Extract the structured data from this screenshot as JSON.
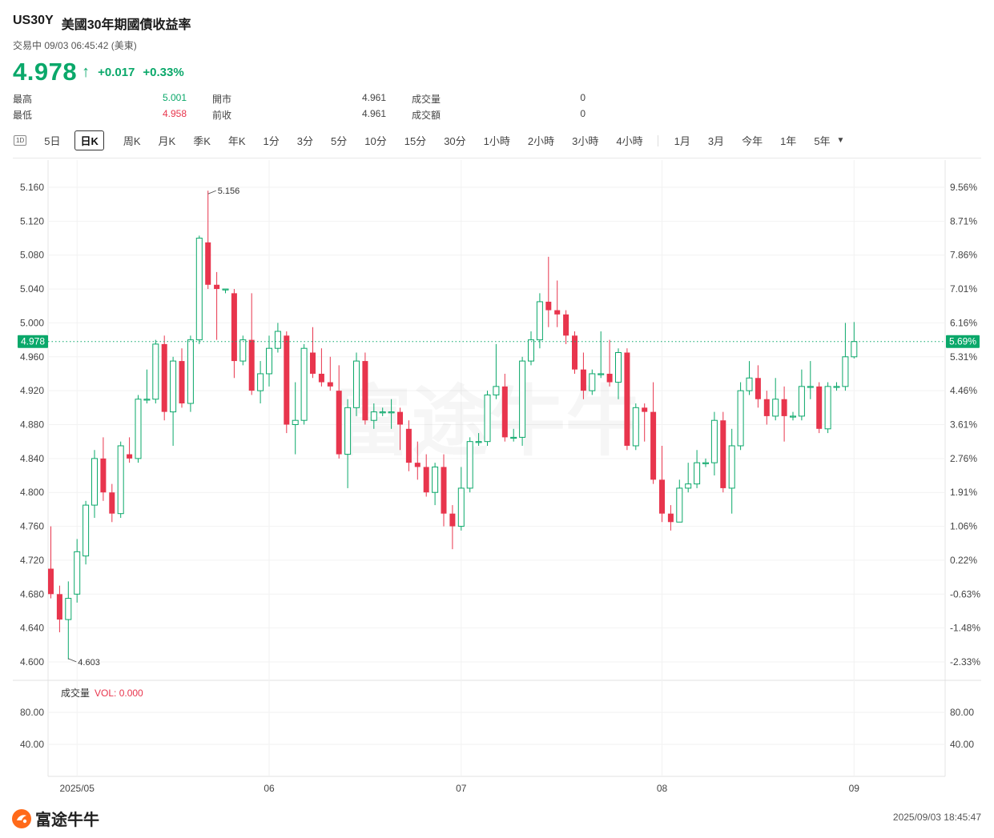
{
  "header": {
    "symbol": "US30Y",
    "name": "美國30年期國債收益率",
    "status": "交易中 09/03 06:45:42 (美東)",
    "price": "4.978",
    "change": "+0.017",
    "change_pct": "+0.33%",
    "colors": {
      "up": "#0aa86a",
      "down": "#e8354d"
    }
  },
  "stats": [
    {
      "label": "最高",
      "value": "5.001",
      "tone": "up"
    },
    {
      "label": "最低",
      "value": "4.958",
      "tone": "down"
    },
    {
      "label": "開市",
      "value": "4.961",
      "tone": "neutral"
    },
    {
      "label": "前收",
      "value": "4.961",
      "tone": "neutral"
    },
    {
      "label": "成交量",
      "value": "0",
      "tone": "neutral"
    },
    {
      "label": "成交額",
      "value": "0",
      "tone": "neutral"
    }
  ],
  "tabs": {
    "icon_label": "1D",
    "items": [
      "5日",
      "日K",
      "周K",
      "月K",
      "季K",
      "年K",
      "1分",
      "3分",
      "5分",
      "10分",
      "15分",
      "30分",
      "1小時",
      "2小時",
      "3小時",
      "4小時",
      "1月",
      "3月",
      "今年",
      "1年",
      "5年"
    ],
    "active": "日K"
  },
  "volume_panel": {
    "label": "成交量",
    "vol_text": "VOL: 0.000",
    "ticks": [
      "80.00",
      "40.00"
    ],
    "ylim": [
      0,
      120
    ]
  },
  "footer": {
    "brand": "富途牛牛",
    "timestamp": "2025/09/03 18:45:47"
  },
  "chart_data": {
    "type": "candlestick",
    "ylim": [
      4.58,
      5.2
    ],
    "y_ticks": [
      "5.160",
      "5.120",
      "5.080",
      "5.040",
      "5.000",
      "4.960",
      "4.920",
      "4.880",
      "4.840",
      "4.800",
      "4.760",
      "4.720",
      "4.680",
      "4.640",
      "4.600"
    ],
    "right_ticks": [
      "9.56%",
      "8.71%",
      "7.86%",
      "7.01%",
      "6.16%",
      "5.31%",
      "4.46%",
      "3.61%",
      "2.76%",
      "1.91%",
      "1.06%",
      "0.22%",
      "-0.63%",
      "-1.48%",
      "-2.33%"
    ],
    "x_labels": [
      {
        "label": "2025/05",
        "index": 3
      },
      {
        "label": "06",
        "index": 25
      },
      {
        "label": "07",
        "index": 47
      },
      {
        "label": "08",
        "index": 70
      },
      {
        "label": "09",
        "index": 92
      }
    ],
    "current_price": 4.978,
    "current_pct": "5.69%",
    "high_marker": {
      "value": "5.156",
      "index": 18
    },
    "low_marker": {
      "value": "4.603",
      "index": 2
    },
    "candles": [
      [
        4.71,
        4.68,
        4.76,
        4.675
      ],
      [
        4.68,
        4.65,
        4.69,
        4.635
      ],
      [
        4.65,
        4.675,
        4.695,
        4.603
      ],
      [
        4.68,
        4.73,
        4.745,
        4.67
      ],
      [
        4.725,
        4.785,
        4.79,
        4.715
      ],
      [
        4.785,
        4.84,
        4.85,
        4.77
      ],
      [
        4.84,
        4.8,
        4.865,
        4.79
      ],
      [
        4.8,
        4.775,
        4.81,
        4.765
      ],
      [
        4.775,
        4.855,
        4.86,
        4.77
      ],
      [
        4.845,
        4.84,
        4.865,
        4.835
      ],
      [
        4.84,
        4.91,
        4.915,
        4.835
      ],
      [
        4.91,
        4.91,
        4.945,
        4.905
      ],
      [
        4.91,
        4.975,
        4.98,
        4.905
      ],
      [
        4.975,
        4.895,
        4.985,
        4.885
      ],
      [
        4.895,
        4.955,
        4.96,
        4.855
      ],
      [
        4.955,
        4.905,
        4.97,
        4.9
      ],
      [
        4.905,
        4.98,
        4.985,
        4.895
      ],
      [
        4.98,
        5.1,
        5.103,
        4.975
      ],
      [
        5.095,
        5.045,
        5.156,
        5.04
      ],
      [
        5.045,
        5.04,
        5.06,
        4.98
      ],
      [
        5.04,
        5.04,
        5.04,
        5.035
      ],
      [
        5.035,
        4.955,
        5.04,
        4.935
      ],
      [
        4.955,
        4.98,
        4.985,
        4.95
      ],
      [
        4.98,
        4.92,
        5.035,
        4.915
      ],
      [
        4.92,
        4.94,
        4.955,
        4.905
      ],
      [
        4.94,
        4.97,
        4.985,
        4.925
      ],
      [
        4.97,
        4.99,
        5.0,
        4.965
      ],
      [
        4.985,
        4.88,
        4.99,
        4.87
      ],
      [
        4.88,
        4.885,
        4.93,
        4.845
      ],
      [
        4.885,
        4.97,
        4.975,
        4.88
      ],
      [
        4.965,
        4.94,
        4.995,
        4.935
      ],
      [
        4.94,
        4.93,
        4.97,
        4.925
      ],
      [
        4.93,
        4.925,
        4.96,
        4.92
      ],
      [
        4.92,
        4.845,
        4.95,
        4.84
      ],
      [
        4.845,
        4.9,
        4.91,
        4.805
      ],
      [
        4.9,
        4.955,
        4.965,
        4.89
      ],
      [
        4.955,
        4.885,
        4.965,
        4.88
      ],
      [
        4.885,
        4.895,
        4.905,
        4.875
      ],
      [
        4.895,
        4.895,
        4.9,
        4.89
      ],
      [
        4.895,
        4.895,
        4.91,
        4.875
      ],
      [
        4.895,
        4.88,
        4.9,
        4.85
      ],
      [
        4.875,
        4.835,
        4.885,
        4.825
      ],
      [
        4.835,
        4.83,
        4.86,
        4.815
      ],
      [
        4.83,
        4.8,
        4.845,
        4.795
      ],
      [
        4.8,
        4.83,
        4.835,
        4.785
      ],
      [
        4.83,
        4.775,
        4.845,
        4.76
      ],
      [
        4.775,
        4.76,
        4.785,
        4.733
      ],
      [
        4.76,
        4.805,
        4.83,
        4.755
      ],
      [
        4.805,
        4.86,
        4.865,
        4.8
      ],
      [
        4.86,
        4.86,
        4.87,
        4.855
      ],
      [
        4.86,
        4.915,
        4.92,
        4.855
      ],
      [
        4.915,
        4.925,
        4.975,
        4.91
      ],
      [
        4.925,
        4.865,
        4.94,
        4.86
      ],
      [
        4.865,
        4.865,
        4.875,
        4.86
      ],
      [
        4.865,
        4.955,
        4.96,
        4.855
      ],
      [
        4.955,
        4.98,
        4.99,
        4.95
      ],
      [
        4.98,
        5.025,
        5.035,
        4.97
      ],
      [
        5.025,
        5.015,
        5.078,
        4.995
      ],
      [
        5.015,
        5.01,
        5.05,
        4.995
      ],
      [
        5.01,
        4.985,
        5.015,
        4.975
      ],
      [
        4.985,
        4.945,
        4.99,
        4.94
      ],
      [
        4.945,
        4.92,
        4.965,
        4.91
      ],
      [
        4.92,
        4.94,
        4.945,
        4.915
      ],
      [
        4.94,
        4.94,
        4.99,
        4.935
      ],
      [
        4.94,
        4.93,
        4.98,
        4.925
      ],
      [
        4.93,
        4.965,
        4.97,
        4.91
      ],
      [
        4.965,
        4.855,
        4.97,
        4.85
      ],
      [
        4.855,
        4.9,
        4.905,
        4.85
      ],
      [
        4.9,
        4.895,
        4.905,
        4.86
      ],
      [
        4.895,
        4.815,
        4.93,
        4.81
      ],
      [
        4.815,
        4.775,
        4.855,
        4.765
      ],
      [
        4.775,
        4.765,
        4.785,
        4.755
      ],
      [
        4.765,
        4.805,
        4.815,
        4.765
      ],
      [
        4.805,
        4.81,
        4.835,
        4.8
      ],
      [
        4.81,
        4.835,
        4.85,
        4.805
      ],
      [
        4.835,
        4.835,
        4.84,
        4.83
      ],
      [
        4.835,
        4.885,
        4.895,
        4.82
      ],
      [
        4.885,
        4.805,
        4.895,
        4.8
      ],
      [
        4.805,
        4.855,
        4.875,
        4.775
      ],
      [
        4.855,
        4.92,
        4.93,
        4.85
      ],
      [
        4.92,
        4.935,
        4.955,
        4.915
      ],
      [
        4.935,
        4.91,
        4.95,
        4.9
      ],
      [
        4.91,
        4.89,
        4.92,
        4.88
      ],
      [
        4.89,
        4.91,
        4.935,
        4.885
      ],
      [
        4.91,
        4.89,
        4.925,
        4.86
      ],
      [
        4.89,
        4.89,
        4.895,
        4.885
      ],
      [
        4.89,
        4.925,
        4.945,
        4.885
      ],
      [
        4.925,
        4.925,
        4.955,
        4.91
      ],
      [
        4.925,
        4.875,
        4.93,
        4.87
      ],
      [
        4.875,
        4.925,
        4.93,
        4.87
      ],
      [
        4.925,
        4.925,
        4.93,
        4.92
      ],
      [
        4.925,
        4.96,
        5.0,
        4.92
      ],
      [
        4.96,
        4.978,
        5.001,
        4.958
      ]
    ],
    "volume": 0
  }
}
